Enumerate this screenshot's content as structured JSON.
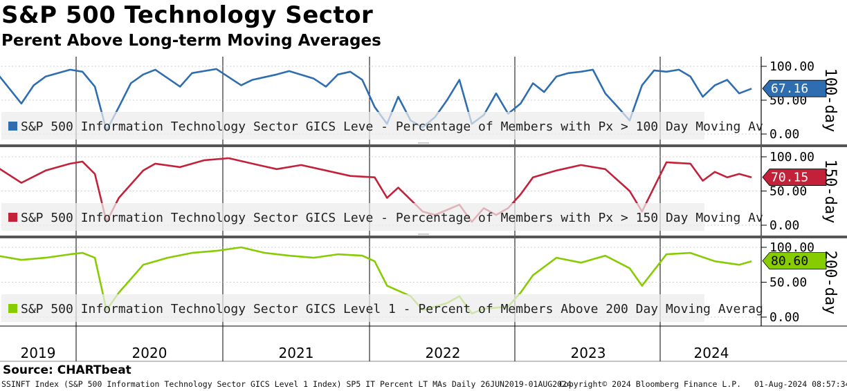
{
  "header": {
    "title": "S&P 500 Technology Sector",
    "subtitle": "Perent Above Long-term Moving Averages"
  },
  "footer": {
    "source": "Source: CHARTbeat",
    "left": "SSINFT Index (S&P 500 Information Technology Sector GICS Level 1 Index) SP5 IT Percent LT MAs  Daily 26JUN2019-01AUG2024",
    "copyright": "Copyright© 2024 Bloomberg Finance L.P.",
    "timestamp": "01-Aug-2024 08:57:34"
  },
  "chart_data": [
    {
      "type": "line",
      "panel_title": "100-day",
      "legend": "S&P 500 Information Technology Sector GICS Leve - Percentage of Members with Px > 100 Day Moving Av",
      "color": "#2e6db0",
      "last_value": "67.16",
      "ylim": [
        0,
        100
      ],
      "yticks": [
        "100.00",
        "50.00",
        "0.00"
      ],
      "x_labels": [
        "2019",
        "2020",
        "2021",
        "2022",
        "2023",
        "2024"
      ],
      "x": [
        "2019-06",
        "2019-08",
        "2019-09",
        "2019-10",
        "2019-12",
        "2020-01",
        "2020-02",
        "2020-03",
        "2020-04",
        "2020-05",
        "2020-06",
        "2020-07",
        "2020-09",
        "2020-10",
        "2020-12",
        "2021-02",
        "2021-03",
        "2021-05",
        "2021-06",
        "2021-08",
        "2021-09",
        "2021-10",
        "2021-11",
        "2021-12",
        "2022-01",
        "2022-02",
        "2022-03",
        "2022-04",
        "2022-05",
        "2022-06",
        "2022-07",
        "2022-08",
        "2022-09",
        "2022-10",
        "2022-11",
        "2022-12",
        "2023-01",
        "2023-02",
        "2023-03",
        "2023-04",
        "2023-05",
        "2023-06",
        "2023-07",
        "2023-08",
        "2023-09",
        "2023-10",
        "2023-11",
        "2023-12",
        "2024-01",
        "2024-02",
        "2024-03",
        "2024-04",
        "2024-05",
        "2024-06",
        "2024-07",
        "2024-08"
      ],
      "values": [
        90,
        45,
        72,
        85,
        95,
        92,
        70,
        5,
        40,
        75,
        88,
        95,
        70,
        90,
        96,
        72,
        80,
        88,
        93,
        82,
        70,
        88,
        92,
        80,
        40,
        15,
        55,
        20,
        10,
        25,
        50,
        80,
        15,
        28,
        60,
        30,
        45,
        75,
        62,
        85,
        90,
        92,
        95,
        60,
        40,
        20,
        72,
        94,
        92,
        95,
        85,
        55,
        72,
        80,
        60,
        67
      ]
    },
    {
      "type": "line",
      "panel_title": "150-day",
      "legend": "S&P 500 Information Technology Sector GICS Leve - Percentage of Members with Px > 150 Day Moving Av",
      "color": "#c3213a",
      "last_value": "70.15",
      "ylim": [
        0,
        100
      ],
      "yticks": [
        "100.00",
        "50.00",
        "0.00"
      ],
      "x": [
        "2019-06",
        "2019-08",
        "2019-10",
        "2019-12",
        "2020-01",
        "2020-02",
        "2020-03",
        "2020-04",
        "2020-06",
        "2020-07",
        "2020-09",
        "2020-11",
        "2021-01",
        "2021-03",
        "2021-05",
        "2021-07",
        "2021-09",
        "2021-11",
        "2022-01",
        "2022-02",
        "2022-03",
        "2022-05",
        "2022-06",
        "2022-08",
        "2022-09",
        "2022-10",
        "2022-11",
        "2022-12",
        "2023-01",
        "2023-02",
        "2023-04",
        "2023-06",
        "2023-08",
        "2023-10",
        "2023-11",
        "2024-01",
        "2024-03",
        "2024-04",
        "2024-05",
        "2024-06",
        "2024-07",
        "2024-08"
      ],
      "values": [
        85,
        62,
        80,
        90,
        93,
        75,
        5,
        40,
        80,
        90,
        85,
        95,
        98,
        90,
        82,
        88,
        80,
        72,
        70,
        40,
        55,
        20,
        15,
        30,
        5,
        25,
        15,
        25,
        45,
        70,
        80,
        88,
        82,
        50,
        20,
        92,
        90,
        65,
        78,
        70,
        75,
        70
      ]
    },
    {
      "type": "line",
      "panel_title": "200-day",
      "legend": "S&P 500 Information Technology Sector GICS Level 1 - Percent of Members Above 200 Day Moving Averag",
      "color": "#86cc00",
      "last_value": "80.60",
      "ylim": [
        0,
        100
      ],
      "yticks": [
        "100.00",
        "50.00",
        "0.00"
      ],
      "x": [
        "2019-06",
        "2019-08",
        "2019-10",
        "2019-12",
        "2020-01",
        "2020-02",
        "2020-03",
        "2020-04",
        "2020-06",
        "2020-08",
        "2020-10",
        "2020-12",
        "2021-02",
        "2021-04",
        "2021-06",
        "2021-08",
        "2021-10",
        "2021-12",
        "2022-01",
        "2022-02",
        "2022-04",
        "2022-05",
        "2022-07",
        "2022-08",
        "2022-09",
        "2022-10",
        "2022-12",
        "2023-01",
        "2023-02",
        "2023-04",
        "2023-06",
        "2023-08",
        "2023-10",
        "2023-11",
        "2024-01",
        "2024-03",
        "2024-05",
        "2024-07",
        "2024-08"
      ],
      "values": [
        88,
        82,
        85,
        90,
        92,
        85,
        10,
        35,
        75,
        85,
        92,
        95,
        100,
        92,
        88,
        85,
        90,
        88,
        80,
        45,
        30,
        10,
        20,
        30,
        5,
        12,
        15,
        35,
        60,
        85,
        78,
        88,
        70,
        45,
        90,
        92,
        80,
        75,
        80
      ]
    }
  ]
}
